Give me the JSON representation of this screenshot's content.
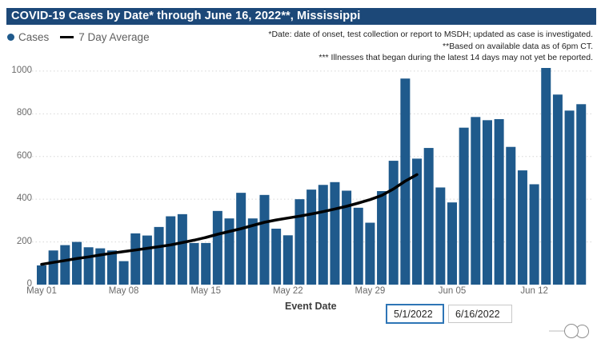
{
  "title": "COVID-19 Cases by Date* through June 16, 2022**, Mississippi",
  "legend": {
    "cases_label": "Cases",
    "avg_label": "7 Day Average"
  },
  "notes": [
    "*Date: date of onset, test collection or report to MSDH; updated as case is investigated.",
    "**Based on available data as of 6pm CT.",
    "*** Illnesses that began during the latest 14 days may not yet be reported."
  ],
  "colors": {
    "banner_bg": "#1C4878",
    "bar": "#1F5A8C",
    "avg_line": "#000000",
    "focus_border": "#2E75B6",
    "grid": "#D6D6D6",
    "axis_text": "#6A6A6A"
  },
  "chart_data": {
    "type": "bar",
    "title": "COVID-19 Cases by Date* through June 16, 2022**, Mississippi",
    "xlabel": "Event Date",
    "ylabel": "",
    "ylim": [
      0,
      1000
    ],
    "yticks": [
      0,
      200,
      400,
      600,
      800,
      1000
    ],
    "grid": "dotted-horizontal",
    "legend_position": "top-left",
    "x": [
      "May 01",
      "May 02",
      "May 03",
      "May 04",
      "May 05",
      "May 06",
      "May 07",
      "May 08",
      "May 09",
      "May 10",
      "May 11",
      "May 12",
      "May 13",
      "May 14",
      "May 15",
      "May 16",
      "May 17",
      "May 18",
      "May 19",
      "May 20",
      "May 21",
      "May 22",
      "May 23",
      "May 24",
      "May 25",
      "May 26",
      "May 27",
      "May 28",
      "May 29",
      "May 30",
      "May 31",
      "Jun 01",
      "Jun 02",
      "Jun 03",
      "Jun 04",
      "Jun 05",
      "Jun 06",
      "Jun 07",
      "Jun 08",
      "Jun 09",
      "Jun 10",
      "Jun 11",
      "Jun 12",
      "Jun 13",
      "Jun 14",
      "Jun 15",
      "Jun 16"
    ],
    "x_tick_labels": [
      "May 01",
      "May 08",
      "May 15",
      "May 22",
      "May 29",
      "Jun 05",
      "Jun 12"
    ],
    "x_tick_indices": [
      0,
      7,
      14,
      21,
      28,
      35,
      42
    ],
    "series": [
      {
        "name": "Cases",
        "type": "bar",
        "values": [
          90,
          160,
          185,
          200,
          175,
          170,
          160,
          110,
          240,
          230,
          270,
          320,
          330,
          195,
          195,
          345,
          310,
          430,
          310,
          420,
          262,
          231,
          400,
          445,
          467,
          480,
          440,
          360,
          290,
          438,
          580,
          965,
          590,
          640,
          455,
          385,
          735,
          785,
          770,
          775,
          645,
          535,
          470,
          1025,
          890,
          815,
          845
        ]
      },
      {
        "name": "7 Day Average",
        "type": "line",
        "note": "line plotted only through Jun 02 (latest 14 days incomplete)",
        "values": [
          95,
          104,
          113,
          122,
          130,
          139,
          147,
          155,
          162,
          170,
          178,
          186,
          197,
          208,
          221,
          236,
          249,
          262,
          277,
          292,
          303,
          312,
          321,
          331,
          342,
          354,
          367,
          382,
          398,
          418,
          448,
          485,
          515
        ]
      }
    ]
  },
  "controls": {
    "xaxis_title": "Event Date",
    "start_date": "5/1/2022",
    "end_date": "6/16/2022"
  }
}
